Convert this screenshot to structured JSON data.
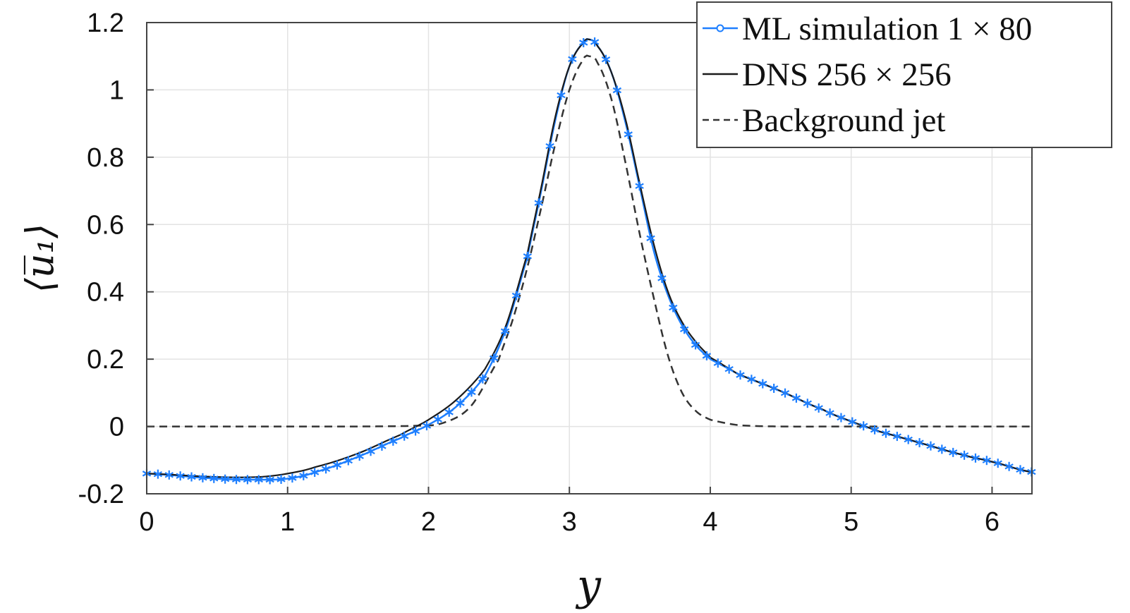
{
  "chart_data": {
    "type": "line",
    "xlabel": "y",
    "ylabel": "⟨u̅₁⟩",
    "xlim": [
      0,
      6.2832
    ],
    "ylim": [
      -0.2,
      1.2
    ],
    "xticks": [
      0,
      1,
      2,
      3,
      4,
      5,
      6
    ],
    "yticks": [
      -0.2,
      0,
      0.2,
      0.4,
      0.6,
      0.8,
      1,
      1.2
    ],
    "xtick_labels": [
      "0",
      "1",
      "2",
      "3",
      "4",
      "5",
      "6"
    ],
    "ytick_labels": [
      "-0.2",
      "0",
      "0.2",
      "0.4",
      "0.6",
      "0.8",
      "1",
      "1.2"
    ],
    "grid": true,
    "legend_position": "top-right",
    "colors": {
      "ml": "#1e7fff",
      "dns": "#1a1a1a",
      "background": "#333333",
      "grid": "#e3e3e3"
    },
    "series": [
      {
        "name": "ML simulation 1 × 80",
        "style": "blue line with asterisk markers",
        "x": [
          0,
          0.5,
          0.8,
          1.0,
          1.2,
          1.5,
          1.8,
          2.0,
          2.2,
          2.4,
          2.55,
          2.7,
          2.8,
          2.9,
          3.0,
          3.1,
          3.14,
          3.2,
          3.3,
          3.4,
          3.5,
          3.6,
          3.7,
          3.8,
          3.9,
          4.0,
          4.2,
          4.5,
          4.8,
          5.0,
          5.2,
          5.5,
          5.8,
          6.0,
          6.28
        ],
        "y": [
          -0.14,
          -0.155,
          -0.158,
          -0.155,
          -0.135,
          -0.09,
          -0.035,
          0.005,
          0.06,
          0.15,
          0.29,
          0.5,
          0.7,
          0.91,
          1.07,
          1.14,
          1.15,
          1.13,
          1.05,
          0.9,
          0.71,
          0.52,
          0.39,
          0.3,
          0.24,
          0.2,
          0.155,
          0.105,
          0.05,
          0.015,
          -0.015,
          -0.05,
          -0.085,
          -0.105,
          -0.135
        ]
      },
      {
        "name": "DNS 256 × 256",
        "style": "black solid line",
        "x": [
          0,
          0.5,
          0.8,
          1.0,
          1.2,
          1.5,
          1.8,
          2.0,
          2.2,
          2.4,
          2.55,
          2.7,
          2.8,
          2.9,
          3.0,
          3.1,
          3.14,
          3.2,
          3.3,
          3.4,
          3.5,
          3.6,
          3.7,
          3.8,
          3.9,
          4.0,
          4.2,
          4.5,
          4.8,
          5.0,
          5.2,
          5.5,
          5.8,
          6.0,
          6.28
        ],
        "y": [
          -0.14,
          -0.15,
          -0.15,
          -0.14,
          -0.12,
          -0.08,
          -0.025,
          0.02,
          0.08,
          0.17,
          0.3,
          0.51,
          0.71,
          0.92,
          1.07,
          1.14,
          1.15,
          1.13,
          1.05,
          0.91,
          0.72,
          0.54,
          0.4,
          0.31,
          0.25,
          0.205,
          0.155,
          0.105,
          0.05,
          0.015,
          -0.015,
          -0.05,
          -0.085,
          -0.105,
          -0.135
        ]
      },
      {
        "name": "Background jet",
        "style": "black dashed line",
        "x": [
          0,
          0.5,
          1.0,
          1.5,
          1.9,
          2.1,
          2.3,
          2.5,
          2.6,
          2.7,
          2.8,
          2.9,
          3.0,
          3.1,
          3.14,
          3.2,
          3.3,
          3.4,
          3.5,
          3.6,
          3.7,
          3.8,
          3.9,
          4.0,
          4.2,
          4.5,
          5.0,
          5.5,
          6.0,
          6.28
        ],
        "y": [
          0,
          0,
          0,
          0,
          0.002,
          0.01,
          0.06,
          0.2,
          0.32,
          0.47,
          0.65,
          0.84,
          1.0,
          1.09,
          1.1,
          1.08,
          0.97,
          0.78,
          0.57,
          0.38,
          0.21,
          0.1,
          0.045,
          0.02,
          0.004,
          0,
          0,
          0,
          0,
          0
        ]
      }
    ]
  }
}
